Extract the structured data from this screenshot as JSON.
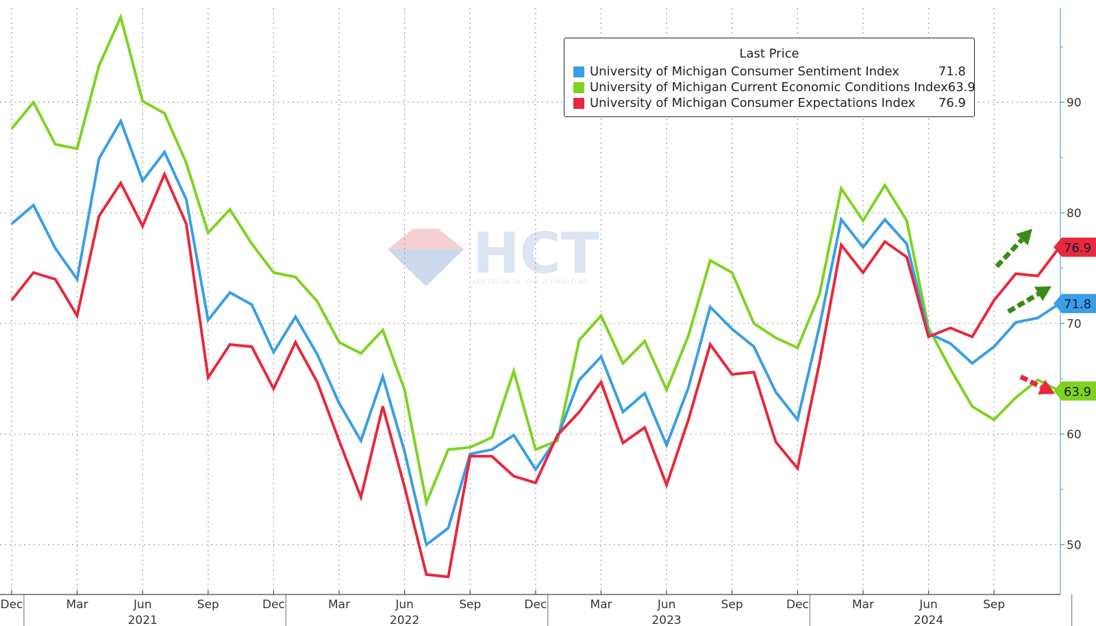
{
  "chart_data": {
    "type": "line",
    "title": "",
    "xlabel": "",
    "ylabel": "",
    "ylim": [
      45.5,
      98.5
    ],
    "y_ticks": [
      50,
      60,
      70,
      80,
      90
    ],
    "grid": true,
    "legend_position": "top-right",
    "legend_title": "Last Price",
    "x_ticks": [
      {
        "label": "Dec",
        "index": 0
      },
      {
        "label": "Mar",
        "index": 3
      },
      {
        "label": "Jun",
        "index": 6
      },
      {
        "label": "Sep",
        "index": 9
      },
      {
        "label": "Dec",
        "index": 12
      },
      {
        "label": "Mar",
        "index": 15
      },
      {
        "label": "Jun",
        "index": 18
      },
      {
        "label": "Sep",
        "index": 21
      },
      {
        "label": "Dec",
        "index": 24
      },
      {
        "label": "Mar",
        "index": 27
      },
      {
        "label": "Jun",
        "index": 30
      },
      {
        "label": "Sep",
        "index": 33
      },
      {
        "label": "Dec",
        "index": 36
      },
      {
        "label": "Mar",
        "index": 39
      },
      {
        "label": "Jun",
        "index": 42
      },
      {
        "label": "Sep",
        "index": 45
      }
    ],
    "year_labels": [
      {
        "label": "2021",
        "index": 6
      },
      {
        "label": "2022",
        "index": 18
      },
      {
        "label": "2023",
        "index": 30
      },
      {
        "label": "2024",
        "index": 42
      }
    ],
    "year_separators": [
      1,
      13,
      25,
      37,
      49
    ],
    "series": [
      {
        "name": "University of Michigan Current Economic Conditions Index",
        "color": "#7ed321",
        "last": "63.9",
        "values": [
          87.6,
          90.0,
          86.2,
          85.8,
          93.3,
          97.7,
          90.1,
          89.0,
          84.5,
          78.2,
          80.3,
          77.2,
          74.6,
          74.2,
          72.0,
          68.3,
          67.3,
          69.4,
          64.0,
          53.8,
          58.6,
          58.8,
          59.7,
          65.7,
          58.6,
          59.4,
          68.5,
          70.7,
          66.4,
          68.4,
          64.0,
          68.9,
          75.7,
          74.6,
          70.0,
          68.7,
          67.8,
          72.6,
          82.2,
          79.3,
          82.5,
          79.3,
          69.6,
          65.9,
          62.5,
          61.3,
          63.3,
          64.9,
          63.9
        ]
      },
      {
        "name": "University of Michigan Consumer Sentiment Index",
        "color": "#3a9ee6",
        "last": "71.8",
        "values": [
          79.0,
          80.7,
          76.8,
          74.0,
          84.9,
          88.3,
          82.9,
          85.5,
          81.2,
          70.3,
          72.8,
          71.7,
          67.4,
          70.6,
          67.2,
          62.8,
          59.4,
          65.2,
          58.4,
          50.0,
          51.5,
          58.2,
          58.6,
          59.9,
          56.8,
          59.7,
          64.9,
          67.0,
          62.0,
          63.7,
          59.0,
          64.2,
          71.5,
          69.5,
          67.9,
          63.8,
          61.3,
          69.7,
          79.4,
          76.9,
          79.4,
          77.2,
          69.1,
          68.2,
          66.4,
          67.9,
          70.1,
          70.5,
          71.8
        ]
      },
      {
        "name": "University of Michigan Consumer Expectations Index",
        "color": "#e8283c",
        "last": "76.9",
        "values": [
          72.1,
          74.6,
          74.0,
          70.7,
          79.7,
          82.7,
          78.8,
          83.5,
          79.0,
          65.1,
          68.1,
          67.9,
          64.1,
          68.3,
          64.7,
          59.4,
          54.3,
          62.5,
          55.2,
          47.3,
          47.1,
          58.0,
          58.0,
          56.2,
          55.6,
          59.9,
          62.0,
          64.7,
          59.2,
          60.6,
          55.4,
          61.3,
          68.1,
          65.4,
          65.6,
          59.3,
          56.9,
          66.4,
          77.1,
          74.6,
          77.4,
          76.0,
          68.8,
          69.6,
          68.8,
          72.1,
          74.5,
          74.3,
          76.9
        ]
      }
    ]
  },
  "watermark": {
    "text": "HCT",
    "tagline": "KIẾN TẠO GIÁ TRỊ - CHIA SẺ THÀNH CÔNG"
  }
}
